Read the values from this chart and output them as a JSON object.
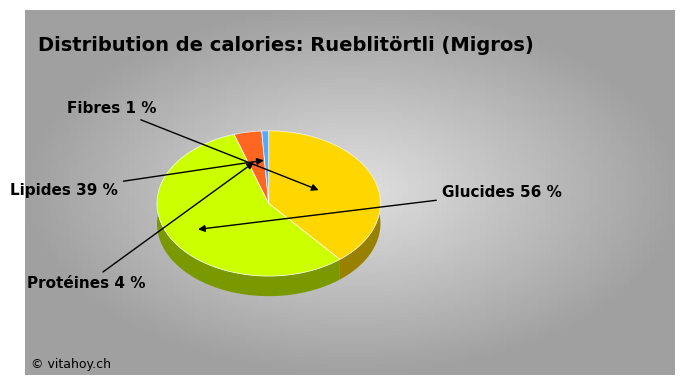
{
  "title": "Distribution de calories: Rueblitörtli (Migros)",
  "slices": [
    {
      "label": "Glucides 56 %",
      "value": 56,
      "color": "#CCFF00"
    },
    {
      "label": "Lipides 39 %",
      "value": 39,
      "color": "#FFD700"
    },
    {
      "label": "Protéines 4 %",
      "value": 4,
      "color": "#FF6622"
    },
    {
      "label": "Fibres 1 %",
      "value": 1,
      "color": "#55AAFF"
    }
  ],
  "background_color_center": "#DCDCDC",
  "background_color_edge": "#A0A0A0",
  "watermark": "© vitahoy.ch",
  "title_fontsize": 14,
  "label_fontsize": 11
}
